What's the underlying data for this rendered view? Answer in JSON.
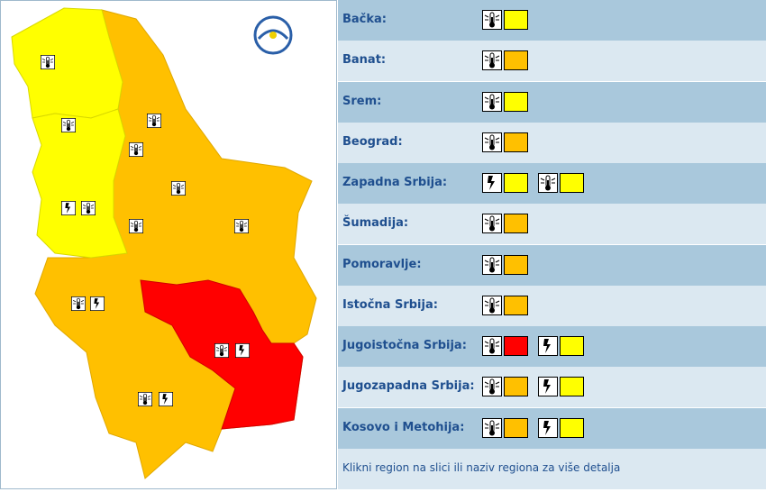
{
  "regions": [
    {
      "name": "Bačka:",
      "warnings": [
        {
          "type": "heat",
          "color": "#ffff00"
        }
      ]
    },
    {
      "name": "Banat:",
      "warnings": [
        {
          "type": "heat",
          "color": "#ffc000"
        }
      ]
    },
    {
      "name": "Srem:",
      "warnings": [
        {
          "type": "heat",
          "color": "#ffff00"
        }
      ]
    },
    {
      "name": "Beograd:",
      "warnings": [
        {
          "type": "heat",
          "color": "#ffc000"
        }
      ]
    },
    {
      "name": "Zapadna Srbija:",
      "warnings": [
        {
          "type": "storm",
          "color": "#ffff00"
        },
        {
          "type": "heat",
          "color": "#ffff00"
        }
      ]
    },
    {
      "name": "Šumadija:",
      "warnings": [
        {
          "type": "heat",
          "color": "#ffc000"
        }
      ]
    },
    {
      "name": "Pomoravlje:",
      "warnings": [
        {
          "type": "heat",
          "color": "#ffc000"
        }
      ]
    },
    {
      "name": "Istočna Srbija:",
      "warnings": [
        {
          "type": "heat",
          "color": "#ffc000"
        }
      ]
    },
    {
      "name": "Jugoistočna Srbija:",
      "warnings": [
        {
          "type": "heat",
          "color": "#ff0000"
        },
        {
          "type": "storm",
          "color": "#ffff00"
        }
      ]
    },
    {
      "name": "Jugozapadna Srbija:",
      "warnings": [
        {
          "type": "heat",
          "color": "#ffc000"
        },
        {
          "type": "storm",
          "color": "#ffff00"
        }
      ]
    },
    {
      "name": "Kosovo i Metohija:",
      "warnings": [
        {
          "type": "heat",
          "color": "#ffc000"
        },
        {
          "type": "storm",
          "color": "#ffff00"
        }
      ]
    }
  ],
  "footer": "Klikni region na slici ili naziv regiona za više detalja"
}
